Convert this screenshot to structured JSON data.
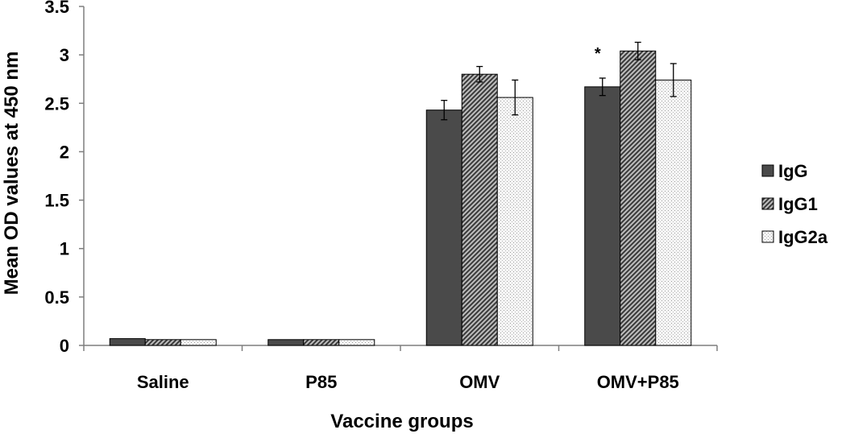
{
  "chart_data": {
    "type": "bar",
    "title": "",
    "xlabel": "Vaccine groups",
    "ylabel": "Mean OD values at 450 nm",
    "ylim": [
      0,
      3.5
    ],
    "yticks": [
      "0",
      "0.5",
      "1",
      "1.5",
      "2",
      "2.5",
      "3",
      "3.5"
    ],
    "categories": [
      "Saline",
      "P85",
      "OMV",
      "OMV+P85"
    ],
    "series": [
      {
        "name": "IgG",
        "values": [
          0.07,
          0.06,
          2.43,
          2.67
        ],
        "errors": [
          0.005,
          0.005,
          0.1,
          0.09
        ],
        "color": "#4a4a4a",
        "pattern": "solid"
      },
      {
        "name": "IgG1",
        "values": [
          0.06,
          0.06,
          2.8,
          3.04
        ],
        "errors": [
          0.005,
          0.005,
          0.08,
          0.09
        ],
        "color": "#8c8c8c",
        "pattern": "diagonal-hatch"
      },
      {
        "name": "IgG2a",
        "values": [
          0.06,
          0.06,
          2.56,
          2.74
        ],
        "errors": [
          0.005,
          0.005,
          0.18,
          0.17
        ],
        "color": "#f2f2f2",
        "pattern": "dots"
      }
    ],
    "annotations": [
      {
        "text": "*",
        "category": "OMV+P85",
        "series": "IgG"
      }
    ],
    "legend": "right",
    "grid": false,
    "error_bars": true
  }
}
